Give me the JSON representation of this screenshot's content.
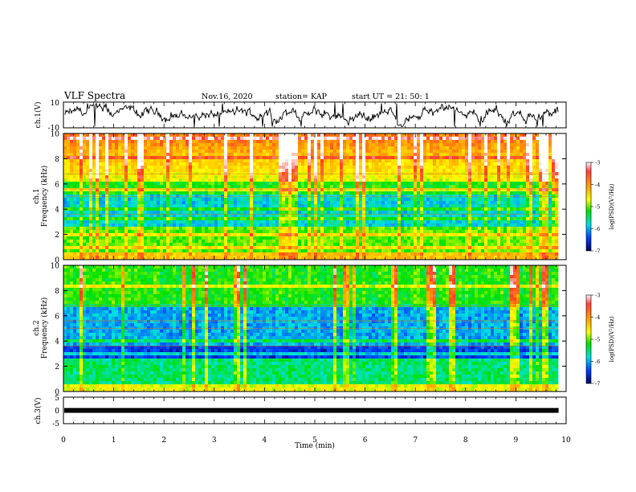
{
  "header": {
    "title": "VLF Spectra",
    "date": "Nov.16, 2020",
    "station": "station= KAP",
    "start": "start  UT =   21: 50: 1"
  },
  "chart_data": {
    "type": "heatmap",
    "xlabel": "Time  (min)",
    "xlim": [
      0,
      10
    ],
    "x_ticks": [
      "0",
      "1",
      "2",
      "3",
      "4",
      "5",
      "6",
      "7",
      "8",
      "9",
      "10"
    ],
    "panels": [
      {
        "id": "ch1-waveform",
        "type": "line",
        "ylabel": "ch.1(V)",
        "ylim": [
          -10,
          10
        ],
        "y_ticks": [
          "10",
          "-10"
        ],
        "trace_end_min": 9.85
      },
      {
        "id": "ch1-spectrogram",
        "type": "heatmap",
        "ylabel": "ch.1\nFrequency (kHz)",
        "ylim": [
          0,
          10
        ],
        "y_ticks": [
          "0",
          "2",
          "4",
          "6",
          "8",
          "10"
        ],
        "data_end_min": 9.85,
        "colorbar": {
          "label": "log(PSD)(V²/Hz)",
          "ticks": [
            "-3",
            "-4",
            "-5",
            "-6",
            "-7"
          ],
          "range": [
            -7,
            -3
          ]
        }
      },
      {
        "id": "ch2-spectrogram",
        "type": "heatmap",
        "ylabel": "ch.2\nFrequency (kHz)",
        "ylim": [
          0,
          10
        ],
        "y_ticks": [
          "0",
          "2",
          "4",
          "6",
          "8",
          "10"
        ],
        "data_end_min": 9.85,
        "colorbar": {
          "label": "log(PSD)(V²/Hz)",
          "ticks": [
            "-3",
            "-4",
            "-5",
            "-6",
            "-7"
          ],
          "range": [
            -7,
            -3
          ]
        }
      },
      {
        "id": "ch3-waveform",
        "type": "line",
        "ylabel": "ch.3(V)",
        "ylim": [
          -5,
          5
        ],
        "y_ticks": [
          "5",
          "0",
          "-5"
        ],
        "value": 0,
        "trace_end_min": 9.85
      }
    ]
  }
}
